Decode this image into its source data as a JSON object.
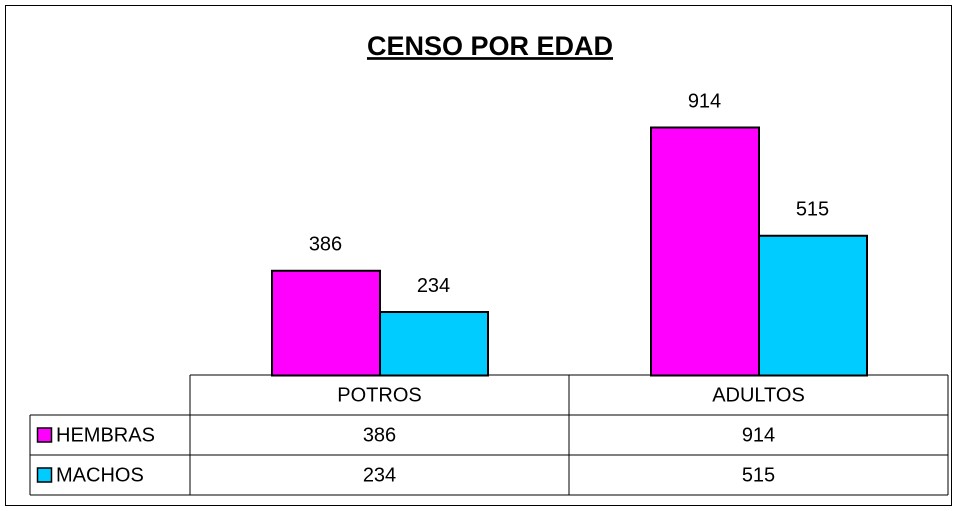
{
  "chart_data": {
    "type": "bar",
    "title": "CENSO POR EDAD",
    "categories": [
      "POTROS",
      "ADULTOS"
    ],
    "series": [
      {
        "name": "HEMBRAS",
        "color": "#ff00ff",
        "values": [
          386,
          914
        ]
      },
      {
        "name": "MACHOS",
        "color": "#00ccff",
        "values": [
          234,
          515
        ]
      }
    ],
    "data_table": true
  }
}
